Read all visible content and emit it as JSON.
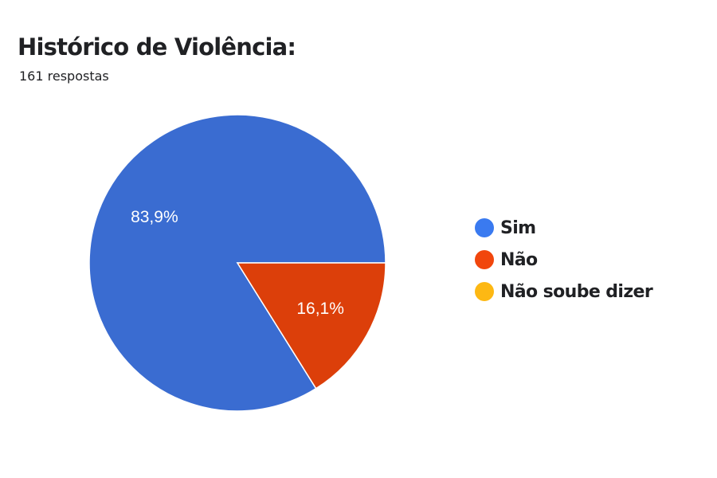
{
  "header": {
    "title": "Histórico de Violência:",
    "subtitle": "161 respostas"
  },
  "chart_data": {
    "type": "pie",
    "title": "Histórico de Violência:",
    "subtitle": "161 respostas",
    "categories": [
      "Sim",
      "Não",
      "Não soube dizer"
    ],
    "values": [
      83.9,
      16.1,
      0
    ],
    "data_labels": [
      "83,9%",
      "16,1%",
      ""
    ],
    "colors": [
      "#3a6cd1",
      "#dc3f0a",
      "#fdb813"
    ],
    "legend_colors": [
      "#3a7af0",
      "#f1460d",
      "#fdb813"
    ],
    "legend_position": "right",
    "start": "east",
    "direction": "counter-clockwise"
  }
}
